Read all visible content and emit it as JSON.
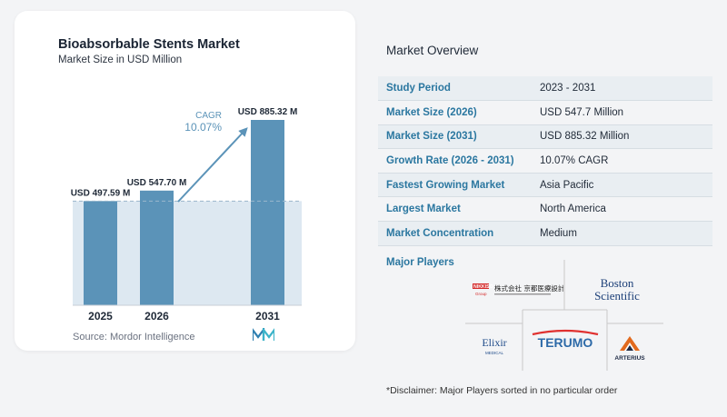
{
  "chart": {
    "title": "Bioabsorbable Stents Market",
    "subtitle": "Market Size in USD Million",
    "cagr_label": "CAGR",
    "cagr_value": "10.07%",
    "source": "Source:  Mordor Intelligence",
    "bar_color": "#5b93b8",
    "bar_top_color": "#6a9fc2",
    "band_color": "#dde8f1",
    "arrow_color": "#5b93b8",
    "cagr_color": "#5b93b8"
  },
  "chart_data": {
    "type": "bar",
    "title": "Bioabsorbable Stents Market",
    "subtitle": "Market Size in USD Million",
    "categories": [
      "2025",
      "2026",
      "2031"
    ],
    "values": [
      497.59,
      547.7,
      885.32
    ],
    "value_labels": [
      "USD 497.59 M",
      "USD 547.70 M",
      "USD 885.32 M"
    ],
    "annotations": [
      "CAGR",
      "10.07%"
    ],
    "ylim": [
      0,
      885.32
    ],
    "grid": false,
    "legend": "none"
  },
  "overview": {
    "title": "Market Overview",
    "rows": [
      {
        "label": "Study Period",
        "value": "2023 - 2031"
      },
      {
        "label": "Market Size (2026)",
        "value": "USD 547.7 Million"
      },
      {
        "label": "Market Size (2031)",
        "value": "USD 885.32 Million"
      },
      {
        "label": "Growth Rate (2026 - 2031)",
        "value": "10.07% CAGR"
      },
      {
        "label": "Fastest Growing Market",
        "value": "Asia Pacific"
      },
      {
        "label": "Largest Market",
        "value": "North America"
      },
      {
        "label": "Market Concentration",
        "value": "Medium"
      }
    ],
    "label_color": "#2b77a0",
    "stripe_color": "#e9eef2"
  },
  "players": {
    "label": "Major Players",
    "logos": [
      {
        "name": "nikkiso-logo",
        "text": "NIKKISO",
        "sub": "Group",
        "jp": "株式会社 京都医療設計"
      },
      {
        "name": "boston-scientific-logo",
        "line1": "Boston",
        "line2": "Scientific"
      },
      {
        "name": "elixir-logo",
        "text": "Elixir",
        "sub": "MEDICAL"
      },
      {
        "name": "terumo-logo",
        "text": "TERUMO",
        "color": "#2d6aa8",
        "accent": "#e0312f"
      },
      {
        "name": "arterius-logo",
        "text": "ARTERIUS"
      }
    ]
  },
  "disclaimer": "*Disclaimer: Major Players sorted in no particular order"
}
